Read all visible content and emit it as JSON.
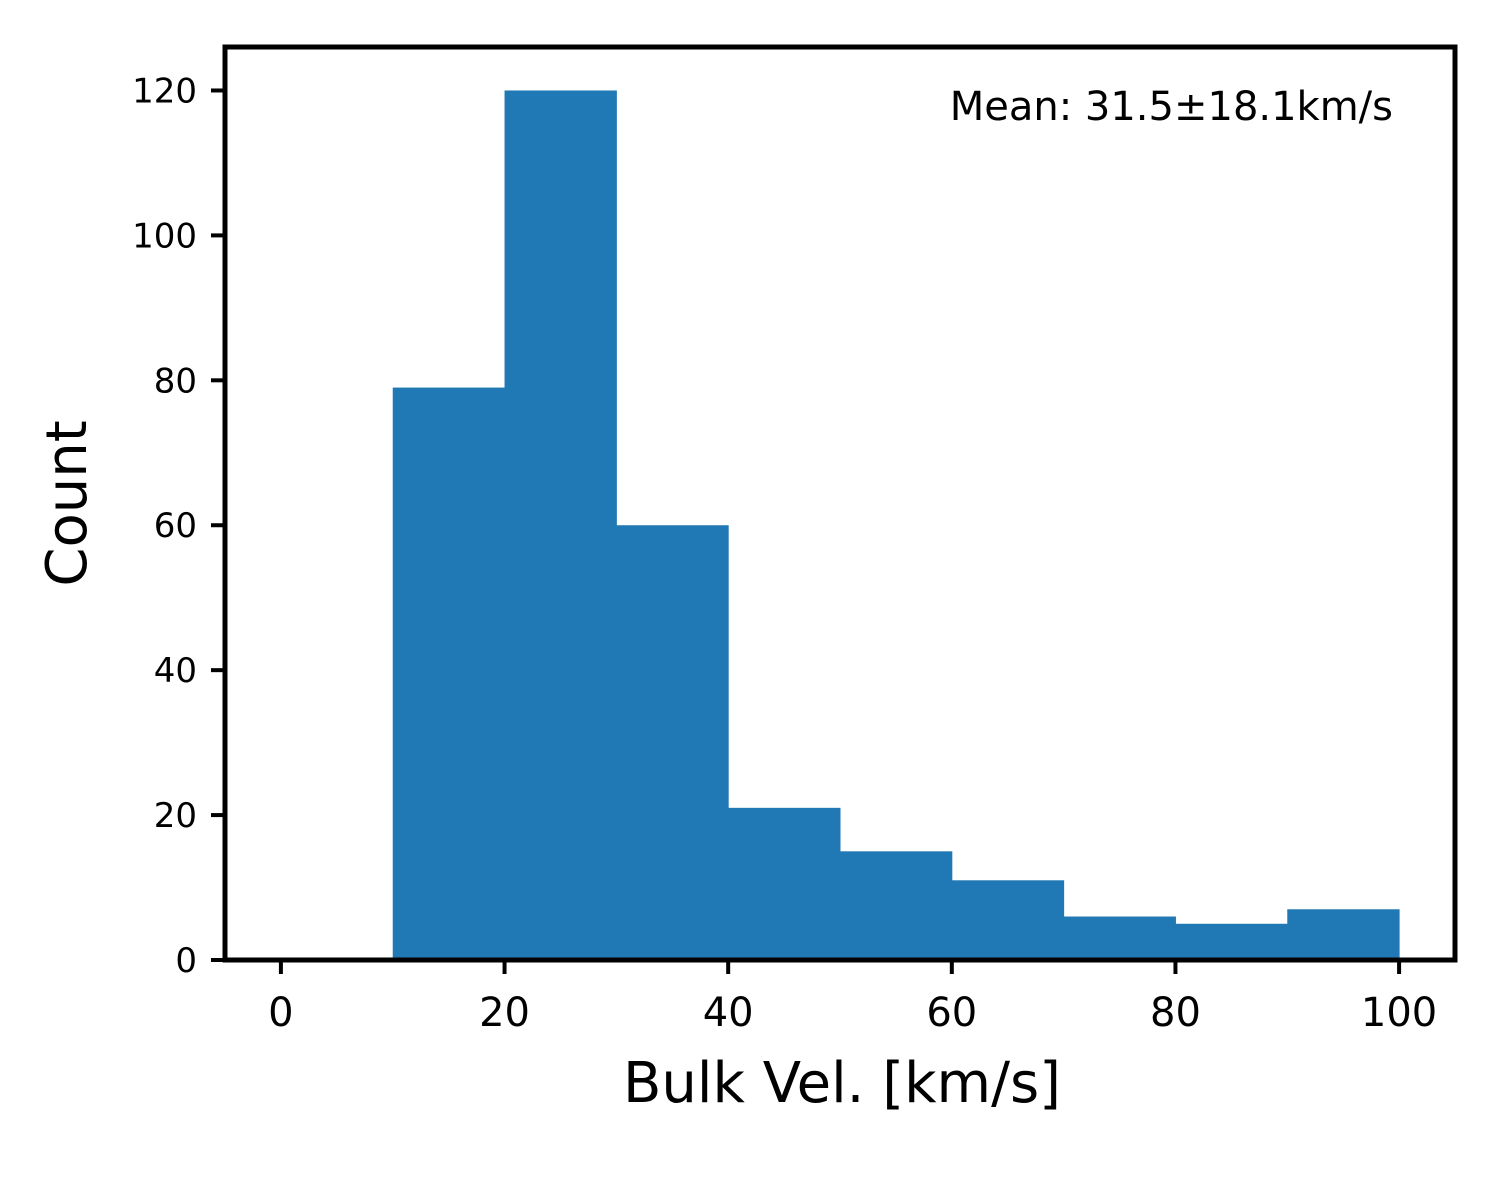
{
  "chart_data": {
    "type": "bar",
    "subtype": "histogram",
    "bin_edges": [
      0,
      10,
      20,
      30,
      40,
      50,
      60,
      70,
      80,
      90,
      100
    ],
    "values": [
      0,
      79,
      120,
      60,
      21,
      15,
      11,
      6,
      5,
      7
    ],
    "xlabel": "Bulk Vel. [km/s]",
    "ylabel": "Count",
    "annotation": "Mean: 31.5±18.1km/s",
    "xlim": [
      -5,
      105
    ],
    "ylim": [
      0,
      126
    ],
    "xticks": [
      0,
      20,
      40,
      60,
      80,
      100
    ],
    "yticks": [
      0,
      20,
      40,
      60,
      80,
      100,
      120
    ],
    "grid": false,
    "colors": {
      "bar": "#2078b4",
      "axes": "#000000"
    }
  }
}
